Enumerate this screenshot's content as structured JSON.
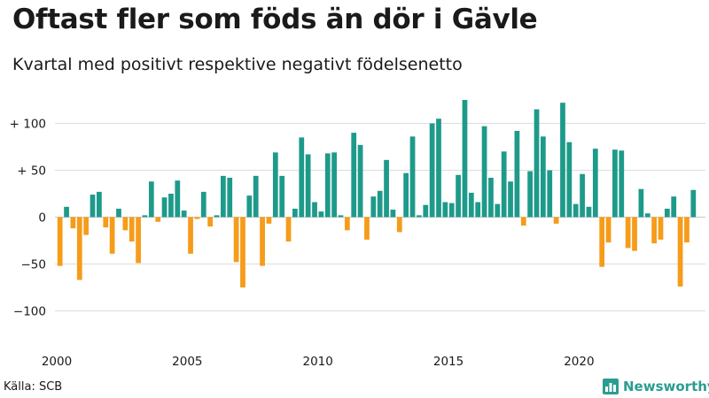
{
  "title": "Oftast fler som föds än dör i Gävle",
  "subtitle": "Kvartal med positivt respektive negativt födelsenetto",
  "source": "Källa: SCB",
  "brand": "Newsworthy",
  "colors": {
    "positive": "#1e9a8a",
    "negative": "#f59c1a",
    "grid": "#dddddd",
    "axis": "#c8c8c8",
    "brand": "#2a9d8f"
  },
  "chart_data": {
    "type": "bar",
    "title": "Oftast fler som föds än dör i Gävle",
    "subtitle": "Kvartal med positivt respektive negativt födelsenetto",
    "xlabel": "",
    "ylabel": "",
    "x_start": 2000,
    "x_end": 2024.75,
    "xticks": [
      2000,
      2005,
      2010,
      2015,
      2020
    ],
    "xtick_labels": [
      "2000",
      "2005",
      "2010",
      "2015",
      "2020"
    ],
    "ylim": [
      -130,
      130
    ],
    "yticks": [
      100,
      50,
      0,
      -50,
      -100
    ],
    "ytick_labels": [
      "+ 100",
      "+  50",
      "0",
      "−50",
      "−100"
    ],
    "grid": true,
    "quarters_start": "2000 Q1",
    "values": [
      -52,
      11,
      -12,
      -67,
      -19,
      24,
      27,
      -11,
      -39,
      9,
      -14,
      -26,
      -49,
      2,
      38,
      -5,
      21,
      25,
      39,
      7,
      -39,
      -2,
      27,
      -10,
      2,
      44,
      42,
      -48,
      -75,
      23,
      44,
      -52,
      -7,
      69,
      44,
      -26,
      9,
      85,
      67,
      16,
      6,
      68,
      69,
      2,
      -14,
      90,
      77,
      -24,
      22,
      28,
      61,
      8,
      -16,
      47,
      86,
      2,
      13,
      100,
      105,
      16,
      15,
      45,
      125,
      26,
      16,
      97,
      42,
      14,
      70,
      38,
      92,
      -9,
      49,
      115,
      86,
      50,
      -7,
      122,
      80,
      14,
      46,
      11,
      73,
      -53,
      -27,
      72,
      71,
      -33,
      -36,
      30,
      4,
      -28,
      -24,
      9,
      22,
      -74,
      -27,
      29
    ]
  }
}
